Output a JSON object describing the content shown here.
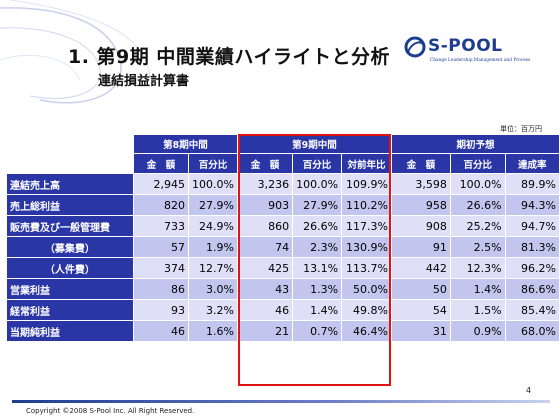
{
  "slide": {
    "title": "1. 第9期 中間業績ハイライトと分析",
    "subtitle": "連結損益計算書",
    "unit": "単位：百万円",
    "page_number": "4",
    "copyright": "Copyright ©2008 S-Pool Inc. All Right Reserved."
  },
  "logo": {
    "name": "S-POOL",
    "tagline": "Change Leadership,Management and Process"
  },
  "table": {
    "groups": [
      "第8期中間",
      "第9期中間",
      "期初予想"
    ],
    "subheaders": [
      "金　額",
      "百分比",
      "金　額",
      "百分比",
      "対前年比",
      "金　額",
      "百分比",
      "達成率"
    ],
    "rows": [
      {
        "label": "連結売上高",
        "values": [
          "2,945",
          "100.0%",
          "3,236",
          "100.0%",
          "109.9%",
          "3,598",
          "100.0%",
          "89.9%"
        ]
      },
      {
        "label": "売上総利益",
        "values": [
          "820",
          "27.9%",
          "903",
          "27.9%",
          "110.2%",
          "958",
          "26.6%",
          "94.3%"
        ]
      },
      {
        "label": "販売費及び一般管理費",
        "values": [
          "733",
          "24.9%",
          "860",
          "26.6%",
          "117.3%",
          "908",
          "25.2%",
          "94.7%"
        ]
      },
      {
        "label": "（募集費）",
        "values": [
          "57",
          "1.9%",
          "74",
          "2.3%",
          "130.9%",
          "91",
          "2.5%",
          "81.3%"
        ]
      },
      {
        "label": "（人件費）",
        "values": [
          "374",
          "12.7%",
          "425",
          "13.1%",
          "113.7%",
          "442",
          "12.3%",
          "96.2%"
        ]
      },
      {
        "label": "営業利益",
        "values": [
          "86",
          "3.0%",
          "43",
          "1.3%",
          "50.0%",
          "50",
          "1.4%",
          "86.6%"
        ]
      },
      {
        "label": "経常利益",
        "values": [
          "93",
          "3.2%",
          "46",
          "1.4%",
          "49.8%",
          "54",
          "1.5%",
          "85.4%"
        ]
      },
      {
        "label": "当期純利益",
        "values": [
          "46",
          "1.6%",
          "21",
          "0.7%",
          "46.4%",
          "31",
          "0.9%",
          "68.0%"
        ]
      }
    ]
  },
  "colors": {
    "header_bg": "#2a35a6",
    "row_light": "#dfe0f7",
    "row_dark": "#c2c6ee",
    "highlight_border": "#e01414",
    "brand": "#1d3d8f"
  }
}
